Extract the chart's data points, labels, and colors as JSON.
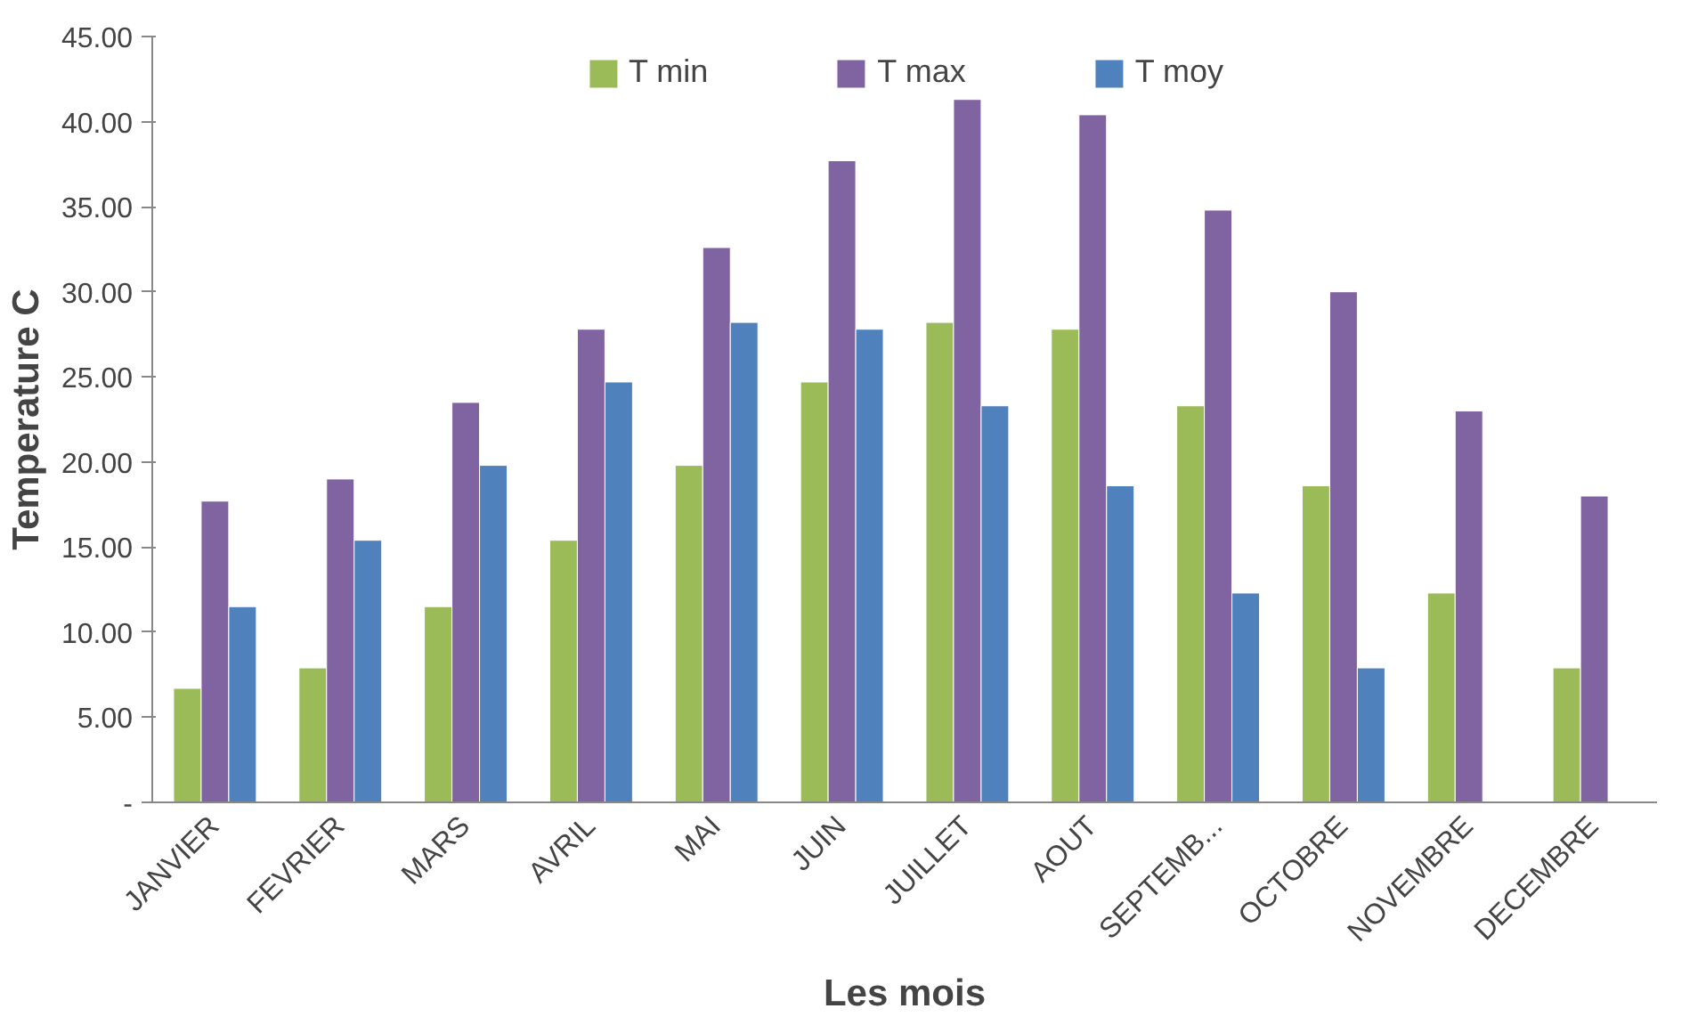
{
  "chart_data": {
    "type": "bar",
    "xlabel": "Les mois",
    "ylabel": "Temperature C",
    "categories": [
      "JANVIER",
      "FEVRIER",
      "MARS",
      "AVRIL",
      "MAI",
      "JUIN",
      "JUILLET",
      "AOUT",
      "SEPTEMB...",
      "OCTOBRE",
      "NOVEMBRE",
      "DECEMBRE"
    ],
    "series": [
      {
        "name": "T min",
        "color": "#9bbb59",
        "values": [
          6.7,
          7.9,
          11.5,
          15.4,
          19.8,
          24.7,
          28.2,
          27.8,
          23.3,
          18.6,
          12.3,
          7.9
        ]
      },
      {
        "name": "T max",
        "color": "#8064a2",
        "values": [
          17.7,
          19.0,
          23.5,
          27.8,
          32.6,
          37.7,
          41.3,
          40.4,
          34.8,
          30.0,
          23.0,
          18.0
        ]
      },
      {
        "name": "T moy",
        "color": "#4f81bd",
        "values": [
          11.5,
          15.4,
          19.8,
          24.7,
          28.2,
          27.8,
          23.3,
          18.6,
          12.3,
          7.9,
          null,
          null
        ]
      }
    ],
    "ylim": [
      0,
      45
    ],
    "yticks": [
      {
        "value": 0,
        "label": "-"
      },
      {
        "value": 5,
        "label": "5.00"
      },
      {
        "value": 10,
        "label": "10.00"
      },
      {
        "value": 15,
        "label": "15.00"
      },
      {
        "value": 20,
        "label": "20.00"
      },
      {
        "value": 25,
        "label": "25.00"
      },
      {
        "value": 30,
        "label": "30.00"
      },
      {
        "value": 35,
        "label": "35.00"
      },
      {
        "value": 40,
        "label": "40.00"
      },
      {
        "value": 45,
        "label": "45.00"
      }
    ],
    "grid": false,
    "legend": "top"
  }
}
